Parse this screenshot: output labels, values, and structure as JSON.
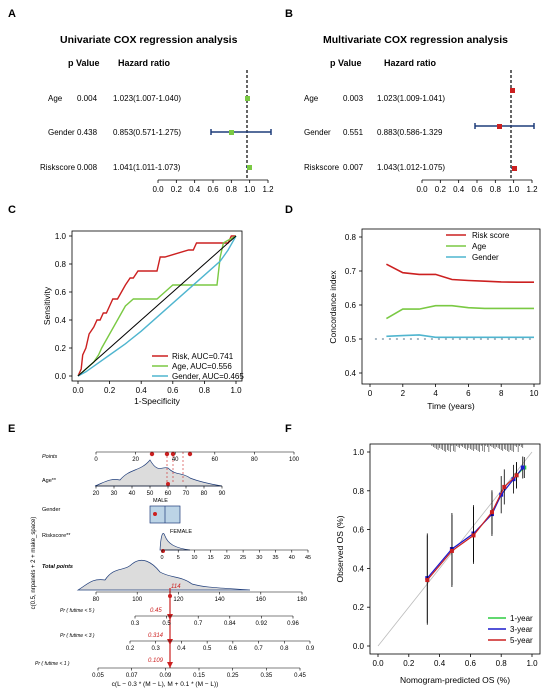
{
  "panels": {
    "A": {
      "label": "A",
      "title": "Univariate COX regression analysis",
      "col_p": "p Value",
      "col_hr": "Hazard ratio",
      "rows": [
        {
          "name": "Age",
          "p": "0.004",
          "hr": "1.023(1.007-1.040)"
        },
        {
          "name": "Gender",
          "p": "0.438",
          "hr": "0.853(0.571-1.275)"
        },
        {
          "name": "Riskscore",
          "p": "0.008",
          "hr": "1.041(1.011-1.073)"
        }
      ],
      "ticks": [
        "0.0",
        "0.2",
        "0.4",
        "0.6",
        "0.8",
        "1.0",
        "1.2"
      ]
    },
    "B": {
      "label": "B",
      "title": "Multivariate COX regression analysis",
      "col_p": "p Value",
      "col_hr": "Hazard ratio",
      "rows": [
        {
          "name": "Age",
          "p": "0.003",
          "hr": "1.023(1.009-1.041)"
        },
        {
          "name": "Gender",
          "p": "0.551",
          "hr": "0.883(0.586-1.329"
        },
        {
          "name": "Riskscore",
          "p": "0.007",
          "hr": "1.043(1.012-1.075)"
        }
      ],
      "ticks": [
        "0.0",
        "0.2",
        "0.4",
        "0.6",
        "0.8",
        "1.0",
        "1.2"
      ]
    },
    "C": {
      "label": "C",
      "xlabel": "1-Specificity",
      "ylabel": "Sensitivity",
      "xticks": [
        "0.0",
        "0.2",
        "0.4",
        "0.6",
        "0.8",
        "1.0"
      ],
      "yticks": [
        "0.0",
        "0.2",
        "0.4",
        "0.6",
        "0.8",
        "1.0"
      ],
      "legend": [
        "Risk, AUC=0.741",
        "Age, AUC=0.556",
        "Gender, AUC=0.465"
      ]
    },
    "D": {
      "label": "D",
      "xlabel": "Time (years)",
      "ylabel": "Concordance index",
      "xticks": [
        "0",
        "2",
        "4",
        "6",
        "8",
        "10"
      ],
      "yticks": [
        "0.4",
        "0.5",
        "0.6",
        "0.7",
        "0.8"
      ],
      "legend": [
        "Risk score",
        "Age",
        "Gender"
      ]
    },
    "E": {
      "label": "E",
      "rows": {
        "points": "Points",
        "age": "Age**",
        "gender": "Gender",
        "riskscore": "Riskscore**",
        "total": "Total points",
        "pr5": "Pr ( futime < 5 )",
        "pr3": "Pr ( futime < 3 )",
        "pr1": "Pr ( futime < 1 )"
      },
      "points_ticks": [
        "0",
        "20",
        "40",
        "60",
        "80",
        "100"
      ],
      "age_ticks": [
        "20",
        "30",
        "40",
        "50",
        "60",
        "70",
        "80",
        "90"
      ],
      "gender_labels": [
        "MALE",
        "FEMALE"
      ],
      "risk_ticks": [
        "0",
        "5",
        "10",
        "15",
        "20",
        "25",
        "30",
        "35",
        "40",
        "45"
      ],
      "total_ticks": [
        "80",
        "100",
        "120",
        "140",
        "160",
        "180"
      ],
      "total_value": "114",
      "pr5_ticks": [
        "0.3",
        "0.5",
        "0.7",
        "0.84",
        "0.92",
        "0.96"
      ],
      "pr5_value": "0.45",
      "pr3_ticks": [
        "0.2",
        "0.3",
        "0.4",
        "0.5",
        "0.6",
        "0.7",
        "0.8",
        "0.9"
      ],
      "pr3_value": "0.314",
      "pr1_ticks": [
        "0.05",
        "0.07",
        "0.09",
        "0.15",
        "0.25",
        "0.35",
        "0.45"
      ],
      "pr1_value": "0.109",
      "ylabel": "c(0.5, nrpanels + 2 + make_space)",
      "xlabel": "c(L − 0.3 * (M − L), M + 0.1 * (M − L))"
    },
    "F": {
      "label": "F",
      "xlabel": "Nomogram-predicted OS (%)",
      "ylabel": "Observed OS (%)",
      "xticks": [
        "0.0",
        "0.2",
        "0.4",
        "0.6",
        "0.8",
        "1.0"
      ],
      "yticks": [
        "0.0",
        "0.2",
        "0.4",
        "0.6",
        "0.8",
        "1.0"
      ],
      "legend": [
        "1-year",
        "3-year",
        "5-year"
      ]
    }
  },
  "colors": {
    "red": "#d62728",
    "green": "#5fbf1f",
    "blue": "#1a1acc",
    "cyan": "#3fa9c9",
    "navy": "#1f3d7a",
    "risk_c": "#cc2020",
    "age_c": "#7ac943",
    "gender_c": "#4fb5cf"
  },
  "chart_data": [
    {
      "type": "scatter",
      "panel": "A",
      "title": "Univariate COX regression analysis",
      "series": [
        {
          "name": "Age",
          "x": [
            1.023
          ],
          "ci": [
            1.007,
            1.04
          ]
        },
        {
          "name": "Gender",
          "x": [
            0.853
          ],
          "ci": [
            0.571,
            1.275
          ]
        },
        {
          "name": "Riskscore",
          "x": [
            1.041
          ],
          "ci": [
            1.011,
            1.073
          ]
        }
      ],
      "xlim": [
        0,
        1.2
      ]
    },
    {
      "type": "scatter",
      "panel": "B",
      "title": "Multivariate COX regression analysis",
      "series": [
        {
          "name": "Age",
          "x": [
            1.023
          ],
          "ci": [
            1.009,
            1.041
          ]
        },
        {
          "name": "Gender",
          "x": [
            0.883
          ],
          "ci": [
            0.586,
            1.329
          ]
        },
        {
          "name": "Riskscore",
          "x": [
            1.043
          ],
          "ci": [
            1.012,
            1.075
          ]
        }
      ],
      "xlim": [
        0,
        1.2
      ]
    },
    {
      "type": "line",
      "panel": "C",
      "xlabel": "1-Specificity",
      "ylabel": "Sensitivity",
      "xlim": [
        0,
        1
      ],
      "ylim": [
        0,
        1
      ],
      "series": [
        {
          "name": "Risk, AUC=0.741",
          "x": [
            0,
            0.02,
            0.03,
            0.05,
            0.07,
            0.1,
            0.12,
            0.14,
            0.16,
            0.18,
            0.2,
            0.22,
            0.25,
            0.3,
            0.33,
            0.35,
            0.38,
            0.4,
            0.5,
            0.52,
            0.55,
            0.7,
            0.73,
            0.75,
            0.8,
            0.95,
            0.97,
            1.0
          ],
          "y": [
            0,
            0.05,
            0.15,
            0.2,
            0.3,
            0.35,
            0.4,
            0.4,
            0.45,
            0.45,
            0.5,
            0.55,
            0.55,
            0.65,
            0.7,
            0.7,
            0.75,
            0.75,
            0.75,
            0.85,
            0.85,
            0.9,
            0.9,
            0.95,
            0.95,
            0.95,
            1.0,
            1.0
          ]
        },
        {
          "name": "Age, AUC=0.556",
          "x": [
            0,
            0.05,
            0.1,
            0.13,
            0.15,
            0.2,
            0.25,
            0.3,
            0.35,
            0.5,
            0.55,
            0.6,
            0.65,
            0.7,
            0.75,
            0.88,
            0.9,
            0.92,
            0.95,
            1.0
          ],
          "y": [
            0,
            0.05,
            0.1,
            0.15,
            0.2,
            0.3,
            0.4,
            0.5,
            0.55,
            0.55,
            0.6,
            0.65,
            0.65,
            0.65,
            0.65,
            0.65,
            0.85,
            0.95,
            0.97,
            1.0
          ]
        },
        {
          "name": "Gender, AUC=0.465",
          "x": [
            0,
            0.05,
            0.1,
            0.2,
            0.3,
            0.4,
            0.5,
            0.6,
            0.7,
            0.8,
            0.9,
            0.95,
            1.0
          ],
          "y": [
            0,
            0.03,
            0.07,
            0.15,
            0.23,
            0.32,
            0.42,
            0.52,
            0.62,
            0.72,
            0.82,
            0.9,
            1.0
          ]
        },
        {
          "name": "",
          "x": [
            0,
            1
          ],
          "y": [
            0,
            1
          ]
        }
      ]
    },
    {
      "type": "line",
      "panel": "D",
      "xlabel": "Time (years)",
      "ylabel": "Concordance index",
      "xlim": [
        0,
        10
      ],
      "ylim": [
        0.4,
        0.8
      ],
      "x": [
        1,
        2,
        3,
        4,
        5,
        6,
        7,
        8,
        9,
        10
      ],
      "series": [
        {
          "name": "Risk score",
          "values": [
            0.72,
            0.695,
            0.69,
            0.69,
            0.675,
            0.672,
            0.67,
            0.668,
            0.667,
            0.667
          ]
        },
        {
          "name": "Age",
          "values": [
            0.56,
            0.588,
            0.588,
            0.598,
            0.598,
            0.592,
            0.59,
            0.59,
            0.59,
            0.59
          ]
        },
        {
          "name": "Gender",
          "values": [
            0.508,
            0.51,
            0.512,
            0.505,
            0.505,
            0.505,
            0.505,
            0.505,
            0.505,
            0.505
          ]
        }
      ],
      "reference_line": 0.5
    },
    {
      "type": "scatter",
      "panel": "F",
      "xlabel": "Nomogram-predicted OS (%)",
      "ylabel": "Observed OS (%)",
      "xlim": [
        0,
        1
      ],
      "ylim": [
        0,
        1
      ],
      "series": [
        {
          "name": "1-year",
          "x": [
            0.9,
            0.95
          ],
          "y": [
            0.88,
            0.92
          ]
        },
        {
          "name": "3-year",
          "x": [
            0.32,
            0.48,
            0.62,
            0.74,
            0.8,
            0.88,
            0.94
          ],
          "y": [
            0.35,
            0.5,
            0.58,
            0.68,
            0.78,
            0.86,
            0.92
          ]
        },
        {
          "name": "5-year",
          "x": [
            0.32,
            0.48,
            0.62,
            0.74,
            0.82,
            0.9
          ],
          "y": [
            0.34,
            0.49,
            0.57,
            0.69,
            0.82,
            0.88
          ]
        }
      ]
    }
  ]
}
